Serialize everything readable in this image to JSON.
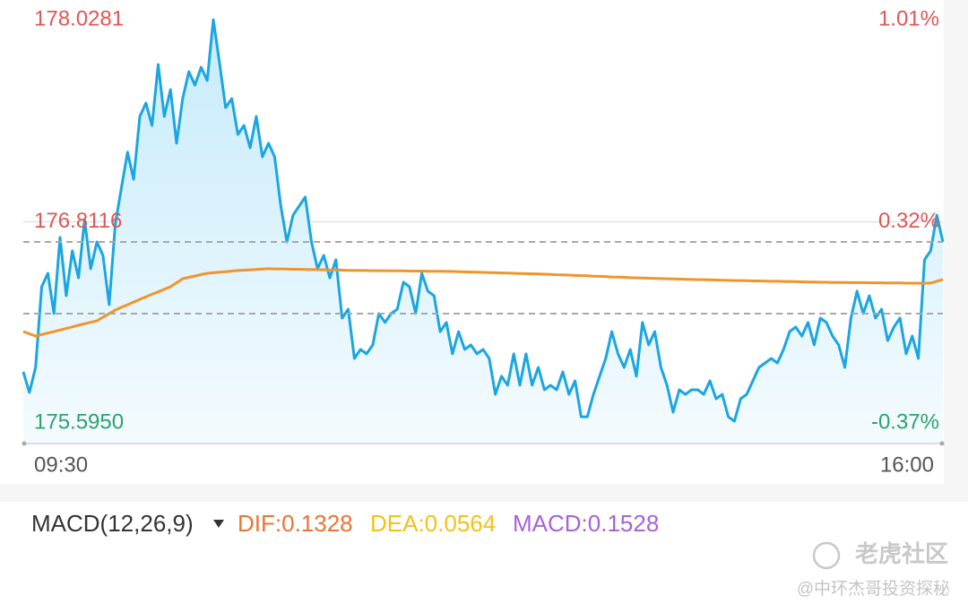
{
  "chart_data": {
    "type": "line",
    "categories": [
      "09:30",
      null,
      null,
      null,
      null,
      null,
      null,
      null,
      null,
      null,
      null,
      null,
      null,
      null,
      null,
      null,
      null,
      null,
      null,
      null,
      null,
      null,
      null,
      null,
      null,
      null,
      null,
      null,
      null,
      null,
      null,
      null,
      null,
      null,
      null,
      null,
      null,
      null,
      null,
      null,
      null,
      null,
      null,
      null,
      null,
      null,
      null,
      null,
      null,
      null,
      null,
      null,
      null,
      null,
      null,
      null,
      null,
      null,
      null,
      null,
      null,
      null,
      null,
      null,
      null,
      null,
      null,
      null,
      null,
      null,
      null,
      null,
      null,
      null,
      null,
      null,
      null,
      null,
      null,
      null,
      null,
      null,
      null,
      null,
      null,
      null,
      null,
      null,
      null,
      null,
      null,
      null,
      null,
      null,
      null,
      null,
      null,
      null,
      null,
      null,
      null,
      null,
      null,
      null,
      null,
      null,
      null,
      null,
      null,
      null,
      null,
      null,
      null,
      null,
      null,
      null,
      null,
      null,
      null,
      null,
      null,
      null,
      null,
      null,
      null,
      null,
      null,
      null,
      null,
      null,
      null,
      null,
      null,
      null,
      null,
      null,
      null,
      null,
      null,
      null,
      null,
      null,
      null,
      null,
      null,
      null,
      null,
      null,
      null,
      null,
      "16:00"
    ],
    "series": [
      {
        "color": "#1ba6e1",
        "fill": true,
        "values": [
          175.988,
          175.875,
          176.013,
          176.455,
          176.529,
          176.308,
          176.726,
          176.406,
          176.652,
          176.504,
          176.824,
          176.554,
          176.701,
          176.627,
          176.357,
          176.799,
          176.996,
          177.193,
          177.045,
          177.389,
          177.463,
          177.34,
          177.674,
          177.389,
          177.537,
          177.242,
          177.487,
          177.635,
          177.561,
          177.659,
          177.586,
          177.92,
          177.684,
          177.438,
          177.487,
          177.291,
          177.34,
          177.217,
          177.389,
          177.168,
          177.242,
          177.168,
          176.898,
          176.701,
          176.848,
          176.898,
          176.947,
          176.701,
          176.554,
          176.627,
          176.504,
          176.603,
          176.283,
          176.332,
          176.062,
          176.111,
          176.087,
          176.136,
          176.308,
          176.259,
          176.308,
          176.332,
          176.48,
          176.455,
          176.308,
          176.529,
          176.431,
          176.406,
          176.209,
          176.259,
          176.087,
          176.209,
          176.111,
          176.136,
          176.087,
          176.111,
          176.062,
          175.865,
          175.964,
          175.915,
          176.087,
          175.915,
          176.087,
          175.915,
          176.013,
          175.89,
          175.915,
          175.89,
          175.988,
          175.865,
          175.939,
          175.742,
          175.742,
          175.865,
          175.964,
          176.062,
          176.209,
          176.087,
          176.013,
          176.111,
          175.964,
          176.259,
          176.136,
          176.209,
          176.013,
          175.915,
          175.767,
          175.89,
          175.865,
          175.89,
          175.89,
          175.865,
          175.939,
          175.841,
          175.865,
          175.742,
          175.718,
          175.841,
          175.865,
          175.939,
          176.013,
          176.037,
          176.062,
          176.037,
          176.111,
          176.209,
          176.234,
          176.185,
          176.259,
          176.136,
          176.283,
          176.259,
          176.185,
          176.136,
          176.013,
          176.283,
          176.431,
          176.308,
          176.406,
          176.283,
          176.332,
          176.16,
          176.234,
          176.283,
          176.087,
          176.185,
          176.062,
          176.603,
          176.652,
          176.848,
          176.701
        ]
      },
      {
        "color": "#f0952b",
        "values": [
          176.209,
          176.197,
          176.185,
          176.193,
          176.201,
          176.209,
          176.218,
          176.226,
          176.235,
          176.244,
          176.252,
          176.26,
          176.268,
          176.288,
          176.307,
          176.327,
          176.342,
          176.356,
          176.371,
          176.386,
          176.4,
          176.414,
          176.427,
          176.441,
          176.455,
          176.477,
          176.499,
          176.507,
          176.514,
          176.522,
          176.529,
          176.532,
          176.535,
          176.538,
          176.541,
          176.544,
          176.546,
          176.548,
          176.55,
          176.552,
          176.554,
          176.553,
          176.553,
          176.552,
          176.551,
          176.551,
          176.55,
          176.549,
          176.549,
          176.548,
          176.547,
          176.547,
          176.546,
          176.545,
          176.545,
          176.544,
          176.544,
          176.543,
          176.543,
          176.543,
          176.542,
          176.542,
          176.542,
          176.541,
          176.541,
          176.541,
          176.54,
          176.54,
          176.54,
          176.539,
          176.539,
          176.538,
          176.537,
          176.536,
          176.535,
          176.534,
          176.533,
          176.532,
          176.531,
          176.53,
          176.529,
          176.528,
          176.527,
          176.526,
          176.525,
          176.524,
          176.523,
          176.521,
          176.52,
          176.519,
          176.517,
          176.516,
          176.515,
          176.513,
          176.512,
          176.511,
          176.509,
          176.508,
          176.507,
          176.505,
          176.504,
          176.503,
          176.502,
          176.501,
          176.5,
          176.499,
          176.498,
          176.497,
          176.496,
          176.495,
          176.494,
          176.494,
          176.493,
          176.492,
          176.491,
          176.49,
          176.489,
          176.489,
          176.488,
          176.487,
          176.487,
          176.486,
          176.485,
          176.485,
          176.484,
          176.483,
          176.483,
          176.482,
          176.481,
          176.481,
          176.48,
          176.48,
          176.479,
          176.479,
          176.479,
          176.478,
          176.478,
          176.478,
          176.477,
          176.477,
          176.477,
          176.476,
          176.476,
          176.476,
          176.475,
          176.475,
          176.475,
          176.475,
          176.475,
          176.485,
          176.495
        ]
      }
    ],
    "ylim": [
      175.595,
      178.0281
    ],
    "yticks": [
      {
        "value": 175.595,
        "label": "175.5950"
      },
      176.8116,
      178.0281
    ],
    "y2lim": [
      -0.37,
      1.01
    ],
    "y2ticks": [
      {
        "value": -0.37,
        "label": "-0.37%"
      },
      {
        "value": 0.32,
        "label": "0.32%"
      },
      {
        "value": 1.01,
        "label": "1.01%"
      }
    ],
    "up_color": "#e05656",
    "down_color": "#2ba36b",
    "grid": true
  },
  "macd": {
    "title": "MACD(12,26,9)",
    "dif": "DIF:0.1328",
    "dea": "DEA:0.0564",
    "macd": "MACD:0.1528"
  },
  "watermark": {
    "brand": "老虎社区",
    "author": "@中环杰哥投资探秘"
  }
}
